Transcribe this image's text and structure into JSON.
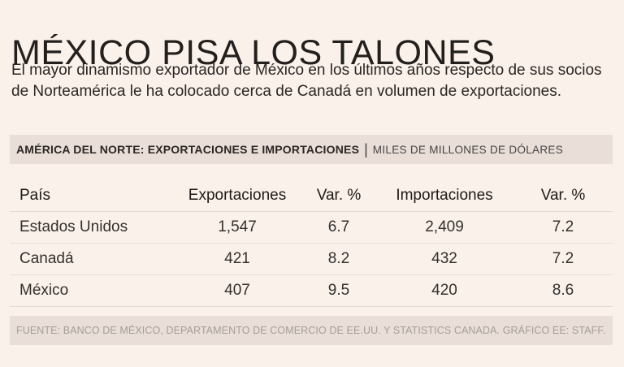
{
  "headline": "MÉXICO PISA LOS TALONES",
  "dek": "El mayor dinamismo exportador de México en los últimos años respecto de sus socios de Norteamérica le ha colocado cerca de Canadá en volumen de exportaciones.",
  "section": {
    "title": "AMÉRICA DEL NORTE: EXPORTACIONES E IMPORTACIONES",
    "separator": "|",
    "units": "MILES DE MILLONES DE DÓLARES"
  },
  "chart_data": {
    "type": "table",
    "title": "AMÉRICA DEL NORTE: EXPORTACIONES E IMPORTACIONES",
    "units": "MILES DE MILLONES DE DÓLARES",
    "columns": [
      "País",
      "Exportaciones",
      "Var. %",
      "Importaciones",
      "Var. %"
    ],
    "rows": [
      [
        "Estados Unidos",
        "1,547",
        "6.7",
        "2,409",
        "7.2"
      ],
      [
        "Canadá",
        "421",
        "8.2",
        "432",
        "7.2"
      ],
      [
        "México",
        "407",
        "9.5",
        "420",
        "8.6"
      ]
    ]
  },
  "footer": "FUENTE: BANCO DE MÉXICO, DEPARTAMENTO DE COMERCIO DE EE.UU. Y STATISTICS CANADA. GRÁFICO EE: STAFF."
}
